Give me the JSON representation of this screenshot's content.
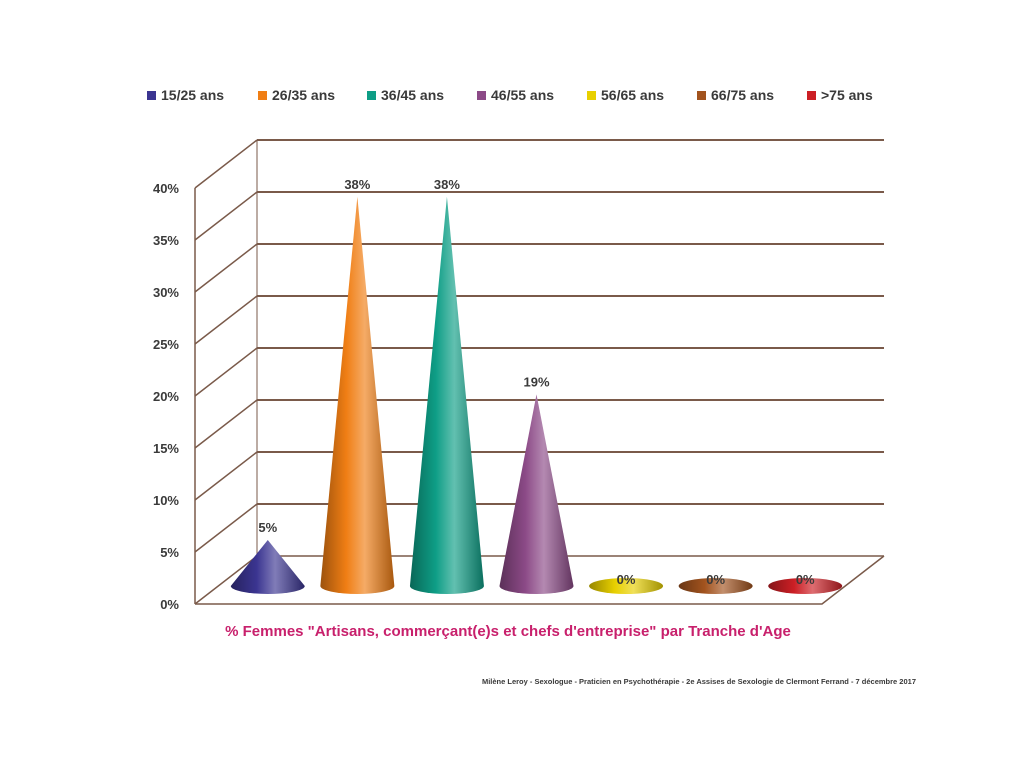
{
  "chart_data": {
    "type": "bar",
    "bar_shape": "cone",
    "categories": [
      "15/25 ans",
      "26/35 ans",
      "36/45 ans",
      "46/55 ans",
      "56/65 ans",
      "66/75 ans",
      ">75 ans"
    ],
    "values": [
      5,
      38,
      38,
      19,
      0,
      0,
      0
    ],
    "value_labels": [
      "5%",
      "38%",
      "38%",
      "19%",
      "0%",
      "0%",
      "0%"
    ],
    "colors": [
      "#3b3591",
      "#f07e14",
      "#0e9e86",
      "#8c4a87",
      "#e8d000",
      "#a2531e",
      "#cc1f25"
    ],
    "ylim": [
      0,
      40
    ],
    "yticks": [
      0,
      5,
      10,
      15,
      20,
      25,
      30,
      35,
      40
    ],
    "ytick_labels": [
      "0%",
      "5%",
      "10%",
      "15%",
      "20%",
      "25%",
      "30%",
      "35%",
      "40%"
    ],
    "legend": {
      "position": "top",
      "entries": [
        "15/25 ans",
        "26/35 ans",
        "36/45 ans",
        "46/55 ans",
        "56/65 ans",
        "66/75 ans",
        ">75 ans"
      ]
    },
    "grid": true,
    "grid_color": "#7a5a4a",
    "caption": "% Femmes \"Artisans, commerçant(e)s et chefs d'entreprise\" par Tranche d'Age",
    "caption_color": "#c8206c"
  },
  "footer": {
    "text": "Milène Leroy - Sexologue - Praticien en Psychothérapie - 2e Assises de Sexologie de Clermont Ferrand - 7 décembre 2017"
  }
}
